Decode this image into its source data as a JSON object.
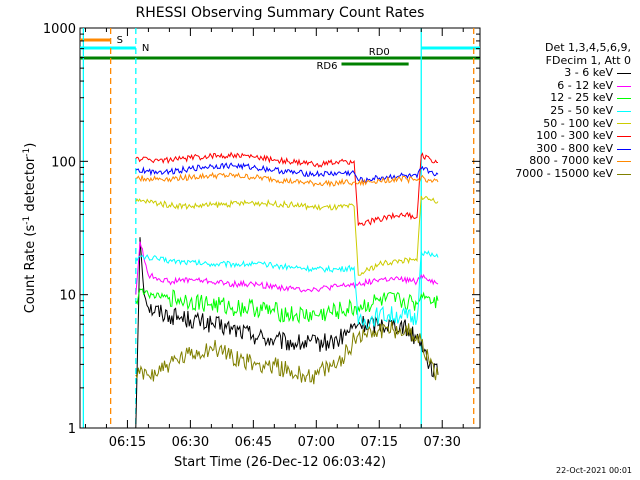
{
  "chart_data": {
    "type": "line",
    "title": "RHESSI Observing Summary Count Rates",
    "xlabel": "Start Time (26-Dec-12 06:03:42)",
    "ylabel_main": "Count Rate (s",
    "ylabel_sup1": "-1",
    "ylabel_mid": " detector",
    "ylabel_sup2": "-1",
    "ylabel_end": ")",
    "x_range": [
      "06:03:42",
      "07:39:00"
    ],
    "y_range": [
      1,
      1000
    ],
    "y_scale": "log",
    "x_ticks": [
      "06:15",
      "06:30",
      "06:45",
      "07:00",
      "07:15",
      "07:30"
    ],
    "y_ticks": [
      "1",
      "10",
      "100",
      "1000"
    ],
    "legend": {
      "header1": "Det 1,3,4,5,6,9,",
      "header2": "FDecim 1, Att 0",
      "entries": [
        {
          "label": "3 - 6 keV",
          "color": "#000000"
        },
        {
          "label": "6 - 12 keV",
          "color": "#ff00ff"
        },
        {
          "label": "12 - 25 keV",
          "color": "#00ff00"
        },
        {
          "label": "25 - 50 keV",
          "color": "#00ffff"
        },
        {
          "label": "50 - 100 keV",
          "color": "#cccc00"
        },
        {
          "label": "100 - 300 keV",
          "color": "#ff0000"
        },
        {
          "label": "300 - 800 keV",
          "color": "#0000ff"
        },
        {
          "label": "800 - 7000 keV",
          "color": "#ff8800"
        },
        {
          "label": "7000 - 15000 keV",
          "color": "#808000"
        }
      ]
    },
    "flag_bars": [
      {
        "label": "S",
        "color": "#ff8800",
        "t_start": "06:03:42",
        "t_end": "06:11:00"
      },
      {
        "label": "N",
        "color": "#00ffff",
        "t_start": "06:03:42",
        "t_end": "06:17:00"
      },
      {
        "label": "N",
        "color": "#00ffff",
        "t_start": "07:25:00",
        "t_end": "07:39:00"
      },
      {
        "label": "RD0",
        "color": "#008000",
        "t_start": "06:03:42",
        "t_end": "07:39:00"
      },
      {
        "label": "RD6",
        "color": "#008000",
        "t_start": "07:06:00",
        "t_end": "07:22:00"
      }
    ],
    "vertical_markers": [
      {
        "time": "06:04:30",
        "color": "#00ffff",
        "style": "solid"
      },
      {
        "time": "06:11:00",
        "color": "#ff8800",
        "style": "dashed"
      },
      {
        "time": "06:17:00",
        "color": "#00ffff",
        "style": "dashed"
      },
      {
        "time": "07:25:00",
        "color": "#00ffff",
        "style": "solid"
      },
      {
        "time": "07:37:30",
        "color": "#ff8800",
        "style": "dashed"
      }
    ],
    "data_interval": [
      "06:16:30",
      "07:29:00"
    ],
    "series": [
      {
        "name": "3 - 6 keV",
        "color": "#000000",
        "x": [
          "06:17",
          "06:18",
          "06:19",
          "06:20",
          "06:25",
          "06:30",
          "06:35",
          "06:40",
          "06:45",
          "06:50",
          "06:55",
          "07:00",
          "07:05",
          "07:10",
          "07:15",
          "07:20",
          "07:25",
          "07:27",
          "07:29"
        ],
        "y": [
          1,
          27,
          10,
          8,
          7,
          6.5,
          6,
          5.5,
          5,
          4.5,
          4.3,
          4.3,
          4.5,
          6,
          6,
          6,
          4.5,
          3,
          2.5
        ]
      },
      {
        "name": "6 - 12 keV",
        "color": "#ff00ff",
        "x": [
          "06:17",
          "06:18",
          "06:20",
          "06:25",
          "06:30",
          "06:35",
          "06:40",
          "06:45",
          "06:50",
          "06:55",
          "07:00",
          "07:05",
          "07:10",
          "07:15",
          "07:20",
          "07:24",
          "07:25",
          "07:27",
          "07:29"
        ],
        "y": [
          10,
          25,
          14,
          12.5,
          13,
          12.5,
          12,
          12,
          11.5,
          11,
          11,
          11.5,
          12,
          13,
          13,
          12.5,
          14,
          13,
          12
        ]
      },
      {
        "name": "12 - 25 keV",
        "color": "#00ff00",
        "x": [
          "06:17",
          "06:18",
          "06:20",
          "06:25",
          "06:30",
          "06:35",
          "06:40",
          "06:45",
          "06:50",
          "06:55",
          "07:00",
          "07:05",
          "07:10",
          "07:15",
          "07:20",
          "07:24",
          "07:25",
          "07:27",
          "07:29"
        ],
        "y": [
          9,
          11,
          10,
          9.5,
          9,
          8.5,
          8,
          8,
          7.5,
          7,
          7,
          7.5,
          8,
          9,
          9,
          8.5,
          10,
          9.5,
          9
        ]
      },
      {
        "name": "25 - 50 keV",
        "color": "#00ffff",
        "x": [
          "06:17",
          "06:20",
          "06:25",
          "06:30",
          "06:35",
          "06:40",
          "06:45",
          "06:50",
          "06:55",
          "07:00",
          "07:05",
          "07:09",
          "07:10",
          "07:15",
          "07:20",
          "07:24",
          "07:25",
          "07:27",
          "07:29"
        ],
        "y": [
          19,
          19,
          18,
          17.5,
          17,
          17,
          17,
          16.5,
          16,
          15.5,
          15.5,
          16,
          6,
          7,
          7,
          6.5,
          21,
          20,
          19
        ]
      },
      {
        "name": "50 - 100 keV",
        "color": "#cccc00",
        "x": [
          "06:17",
          "06:20",
          "06:25",
          "06:30",
          "06:35",
          "06:40",
          "06:45",
          "06:50",
          "06:55",
          "07:00",
          "07:05",
          "07:09",
          "07:10",
          "07:15",
          "07:20",
          "07:24",
          "07:25",
          "07:27",
          "07:29"
        ],
        "y": [
          50,
          50,
          47,
          46,
          47,
          48,
          49,
          48,
          47,
          45,
          45,
          46,
          14,
          17,
          18,
          18,
          55,
          52,
          50
        ]
      },
      {
        "name": "100 - 300 keV",
        "color": "#ff0000",
        "x": [
          "06:17",
          "06:20",
          "06:25",
          "06:30",
          "06:35",
          "06:40",
          "06:45",
          "06:50",
          "06:55",
          "07:00",
          "07:05",
          "07:09",
          "07:10",
          "07:15",
          "07:20",
          "07:24",
          "07:25",
          "07:27",
          "07:29"
        ],
        "y": [
          105,
          103,
          102,
          106,
          110,
          111,
          108,
          103,
          98,
          95,
          98,
          100,
          33,
          37,
          40,
          38,
          110,
          105,
          98
        ]
      },
      {
        "name": "300 - 800 keV",
        "color": "#0000ff",
        "x": [
          "06:17",
          "06:20",
          "06:25",
          "06:30",
          "06:35",
          "06:40",
          "06:45",
          "06:50",
          "06:55",
          "07:00",
          "07:05",
          "07:09",
          "07:10",
          "07:15",
          "07:20",
          "07:24",
          "07:25",
          "07:27",
          "07:29"
        ],
        "y": [
          86,
          84,
          84,
          88,
          92,
          93,
          90,
          86,
          82,
          80,
          81,
          82,
          72,
          75,
          78,
          76,
          88,
          84,
          80
        ]
      },
      {
        "name": "800 - 7000 keV",
        "color": "#ff8800",
        "x": [
          "06:17",
          "06:20",
          "06:25",
          "06:30",
          "06:35",
          "06:40",
          "06:45",
          "06:50",
          "06:55",
          "07:00",
          "07:05",
          "07:09",
          "07:10",
          "07:15",
          "07:20",
          "07:24",
          "07:25",
          "07:27",
          "07:29"
        ],
        "y": [
          75,
          74,
          74,
          76,
          78,
          78,
          76,
          73,
          70,
          68,
          69,
          70,
          68,
          72,
          74,
          72,
          76,
          72,
          70
        ]
      },
      {
        "name": "7000 - 15000 keV",
        "color": "#808000",
        "x": [
          "06:17",
          "06:20",
          "06:25",
          "06:30",
          "06:35",
          "06:40",
          "06:45",
          "06:50",
          "06:55",
          "07:00",
          "07:05",
          "07:10",
          "07:15",
          "07:20",
          "07:24",
          "07:25",
          "07:27",
          "07:29"
        ],
        "y": [
          2.5,
          2.5,
          3,
          3.5,
          4,
          3.5,
          3,
          3,
          2.5,
          2.5,
          3,
          5,
          5.5,
          5.5,
          5,
          4.5,
          3,
          2.5
        ]
      }
    ],
    "footer_date": "22-Oct-2021 00:01"
  }
}
